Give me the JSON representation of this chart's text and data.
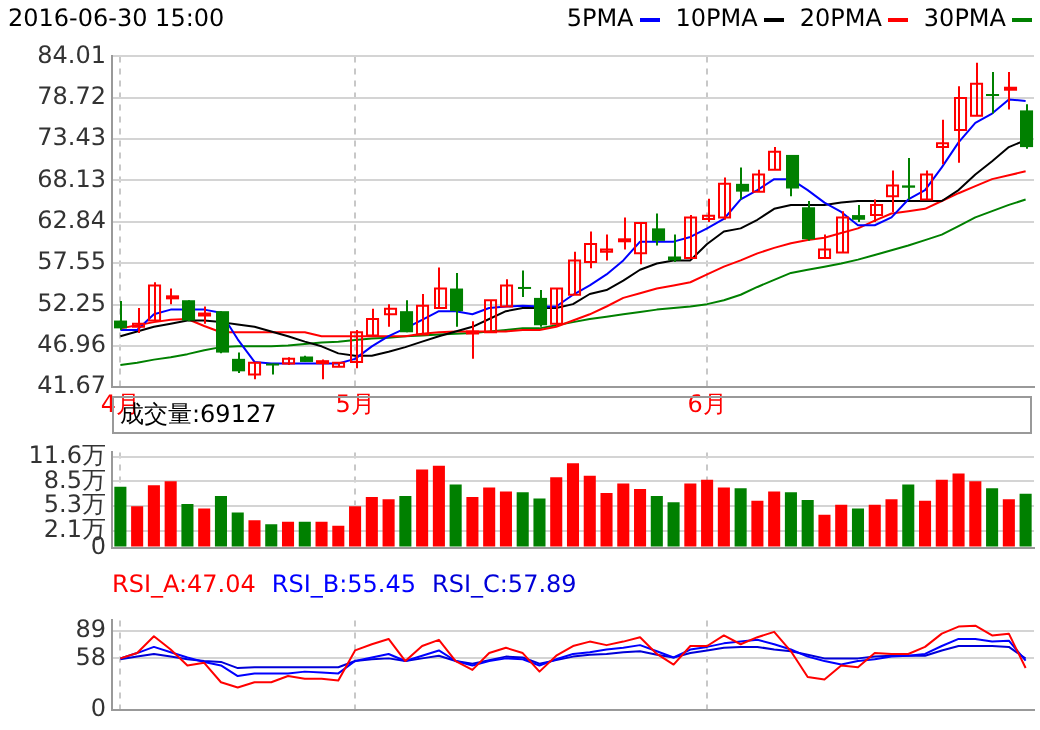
{
  "chart_data": [
    {
      "type": "candlestick",
      "title": "2016-06-30 15:00",
      "categories": [
        "4月",
        null,
        null,
        null,
        null,
        null,
        null,
        null,
        null,
        null,
        null,
        null,
        null,
        null,
        "5月",
        null,
        null,
        null,
        null,
        null,
        null,
        null,
        null,
        null,
        null,
        null,
        null,
        null,
        null,
        null,
        null,
        null,
        null,
        null,
        null,
        "6月",
        null,
        null,
        null,
        null,
        null,
        null,
        null,
        null,
        null,
        null,
        null,
        null,
        null,
        null,
        null,
        null,
        null,
        null,
        null
      ],
      "ohlc": [
        [
          50.2,
          52.7,
          49.0,
          49.2
        ],
        [
          49.4,
          51.8,
          48.6,
          49.8
        ],
        [
          50.2,
          55.1,
          50.2,
          54.7
        ],
        [
          53.1,
          54.3,
          52.3,
          53.3
        ],
        [
          52.8,
          52.8,
          50.1,
          50.2
        ],
        [
          50.9,
          52.0,
          49.8,
          51.1
        ],
        [
          51.4,
          51.4,
          46.0,
          46.1
        ],
        [
          45.3,
          46.1,
          43.5,
          43.7
        ],
        [
          43.3,
          44.8,
          42.7,
          44.8
        ],
        [
          44.7,
          44.7,
          43.3,
          44.5
        ],
        [
          44.7,
          45.5,
          44.5,
          45.3
        ],
        [
          45.6,
          45.7,
          44.9,
          44.9
        ],
        [
          44.8,
          45.2,
          42.7,
          45.0
        ],
        [
          44.3,
          44.8,
          44.3,
          44.8
        ],
        [
          44.9,
          49.0,
          44.1,
          48.7
        ],
        [
          48.3,
          51.7,
          48.3,
          50.4
        ],
        [
          51.0,
          52.3,
          49.4,
          51.7
        ],
        [
          51.4,
          52.8,
          48.7,
          48.7
        ],
        [
          48.4,
          53.6,
          48.4,
          52.1
        ],
        [
          51.8,
          57.0,
          51.8,
          54.3
        ],
        [
          54.3,
          56.3,
          49.4,
          51.4
        ],
        [
          48.6,
          50.1,
          45.3,
          48.8
        ],
        [
          48.7,
          52.8,
          48.6,
          52.8
        ],
        [
          52.0,
          55.5,
          52.0,
          54.7
        ],
        [
          54.5,
          56.6,
          53.2,
          54.3
        ],
        [
          53.1,
          54.1,
          49.4,
          49.6
        ],
        [
          49.8,
          54.3,
          49.4,
          54.3
        ],
        [
          53.5,
          59.0,
          53.5,
          57.9
        ],
        [
          57.7,
          61.6,
          56.9,
          60.0
        ],
        [
          59.0,
          61.2,
          57.9,
          59.3
        ],
        [
          60.4,
          63.4,
          59.3,
          60.6
        ],
        [
          58.8,
          62.7,
          57.4,
          62.7
        ],
        [
          62.0,
          63.9,
          59.8,
          60.4
        ],
        [
          58.4,
          61.2,
          57.7,
          57.9
        ],
        [
          58.2,
          63.7,
          58.2,
          63.4
        ],
        [
          63.2,
          65.8,
          62.8,
          63.6
        ],
        [
          63.4,
          68.5,
          63.1,
          67.7
        ],
        [
          67.7,
          69.8,
          65.7,
          66.7
        ],
        [
          66.7,
          69.5,
          66.7,
          68.9
        ],
        [
          69.5,
          72.4,
          69.5,
          71.8
        ],
        [
          71.4,
          71.4,
          66.1,
          67.1
        ],
        [
          64.7,
          65.5,
          60.4,
          60.6
        ],
        [
          58.2,
          61.2,
          58.2,
          59.3
        ],
        [
          58.9,
          64.2,
          58.9,
          63.4
        ],
        [
          63.7,
          65.0,
          62.8,
          63.1
        ],
        [
          63.7,
          65.7,
          62.8,
          65.0
        ],
        [
          66.1,
          69.4,
          64.1,
          67.5
        ],
        [
          67.5,
          71.0,
          65.7,
          67.2
        ],
        [
          65.7,
          69.4,
          65.7,
          68.9
        ],
        [
          72.4,
          75.9,
          70.2,
          72.9
        ],
        [
          74.6,
          80.2,
          70.4,
          78.7
        ],
        [
          76.4,
          83.2,
          76.4,
          80.5
        ],
        [
          79.2,
          82.0,
          76.7,
          79.0
        ],
        [
          79.8,
          82.0,
          77.2,
          80.0
        ],
        [
          77.1,
          77.9,
          72.2,
          72.4
        ]
      ],
      "colors": [
        "#008000",
        "#ff0000",
        "#ff0000",
        "#ff0000",
        "#008000",
        "#ff0000",
        "#008000",
        "#008000",
        "#ff0000",
        "#008000",
        "#ff0000",
        "#008000",
        "#ff0000",
        "#ff0000",
        "#ff0000",
        "#ff0000",
        "#ff0000",
        "#008000",
        "#ff0000",
        "#ff0000",
        "#008000",
        "#ff0000",
        "#ff0000",
        "#ff0000",
        "#008000",
        "#008000",
        "#ff0000",
        "#ff0000",
        "#ff0000",
        "#ff0000",
        "#ff0000",
        "#ff0000",
        "#008000",
        "#008000",
        "#ff0000",
        "#ff0000",
        "#ff0000",
        "#008000",
        "#ff0000",
        "#ff0000",
        "#008000",
        "#008000",
        "#ff0000",
        "#ff0000",
        "#008000",
        "#ff0000",
        "#ff0000",
        "#008000",
        "#ff0000",
        "#ff0000",
        "#ff0000",
        "#ff0000",
        "#008000",
        "#ff0000",
        "#008000"
      ],
      "series": [
        {
          "name": "5PMA",
          "type": "line",
          "color": "#0000ff",
          "values": [
            49.0,
            49.0,
            51.0,
            51.6,
            51.6,
            51.6,
            51.2,
            47.8,
            44.9,
            44.7,
            44.7,
            44.7,
            44.7,
            44.7,
            45.3,
            46.9,
            48.2,
            49.2,
            50.3,
            51.4,
            51.4,
            51.0,
            51.8,
            52.0,
            52.1,
            52.0,
            52.0,
            53.5,
            54.7,
            56.1,
            57.9,
            60.3,
            60.3,
            60.3,
            60.9,
            62.0,
            63.2,
            65.7,
            66.9,
            68.3,
            68.3,
            66.9,
            65.3,
            64.1,
            62.4,
            62.4,
            63.4,
            65.7,
            66.9,
            69.8,
            73.0,
            75.5,
            76.7,
            78.5,
            78.3
          ]
        },
        {
          "name": "10PMA",
          "type": "line",
          "color": "#000000",
          "values": [
            48.2,
            48.8,
            49.4,
            49.8,
            50.2,
            50.2,
            50.0,
            49.7,
            49.4,
            48.8,
            48.2,
            47.5,
            46.9,
            46.0,
            45.7,
            45.7,
            46.2,
            46.8,
            47.5,
            48.2,
            48.8,
            49.4,
            50.4,
            51.4,
            51.8,
            51.8,
            51.8,
            52.3,
            53.6,
            54.1,
            55.3,
            56.7,
            57.5,
            57.9,
            57.9,
            60.0,
            61.6,
            62.0,
            63.1,
            64.5,
            65.0,
            65.0,
            65.0,
            65.3,
            65.5,
            65.5,
            65.5,
            65.5,
            65.5,
            65.5,
            66.9,
            68.9,
            70.6,
            72.4,
            73.3
          ]
        },
        {
          "name": "20PMA",
          "type": "line",
          "color": "#ff0000",
          "values": [
            49.2,
            49.6,
            50.0,
            50.3,
            50.4,
            49.5,
            48.7,
            48.7,
            48.7,
            48.7,
            48.7,
            48.7,
            48.2,
            48.2,
            48.2,
            48.2,
            48.2,
            48.2,
            48.5,
            48.7,
            48.8,
            48.8,
            48.8,
            48.8,
            49.0,
            49.0,
            49.4,
            50.2,
            51.0,
            52.0,
            53.1,
            53.7,
            54.3,
            54.7,
            55.1,
            56.1,
            57.1,
            57.9,
            58.8,
            59.5,
            60.1,
            60.5,
            60.8,
            61.4,
            62.0,
            63.0,
            63.9,
            64.2,
            64.5,
            65.5,
            66.5,
            67.4,
            68.3,
            68.8,
            69.3
          ]
        },
        {
          "name": "30PMA",
          "type": "line",
          "color": "#008000",
          "values": [
            44.5,
            44.8,
            45.2,
            45.5,
            45.9,
            46.4,
            46.8,
            46.9,
            46.9,
            46.9,
            47.0,
            47.2,
            47.4,
            47.5,
            47.7,
            47.9,
            48.0,
            48.2,
            48.3,
            48.4,
            48.5,
            48.6,
            null,
            49.0,
            49.2,
            49.2,
            49.6,
            50.0,
            50.4,
            50.7,
            51.0,
            51.3,
            51.6,
            51.8,
            52.0,
            52.3,
            52.8,
            53.5,
            54.5,
            55.4,
            56.3,
            56.7,
            57.1,
            57.5,
            58.0,
            58.6,
            59.2,
            59.8,
            60.5,
            61.2,
            62.3,
            63.4,
            64.2,
            65.0,
            65.7
          ]
        }
      ],
      "ylim": [
        41.67,
        84.01
      ],
      "yticks": [
        41.67,
        46.96,
        52.25,
        57.55,
        62.84,
        68.13,
        73.43,
        78.72,
        84.01
      ],
      "grid": true,
      "legend": "top right"
    },
    {
      "type": "bar",
      "annotations": [
        "成交量:69127"
      ],
      "categories": [
        null,
        null,
        null,
        null,
        null,
        null,
        null,
        null,
        null,
        null,
        null,
        null,
        null,
        null,
        null,
        null,
        null,
        null,
        null,
        null,
        null,
        null,
        null,
        null,
        null,
        null,
        null,
        null,
        null,
        null,
        null,
        null,
        null,
        null,
        null,
        null,
        null,
        null,
        null,
        null,
        null,
        null,
        null,
        null,
        null,
        null,
        null,
        null,
        null,
        null,
        null,
        null,
        null,
        null,
        null
      ],
      "values": [
        7.8,
        5.3,
        8.0,
        8.5,
        5.6,
        5.0,
        6.6,
        4.5,
        3.5,
        3.0,
        3.3,
        3.3,
        3.3,
        2.8,
        5.3,
        6.5,
        6.2,
        6.6,
        10.0,
        10.5,
        8.1,
        6.5,
        7.7,
        7.2,
        7.1,
        6.3,
        9.0,
        10.8,
        9.2,
        7.0,
        8.2,
        7.5,
        6.6,
        5.8,
        8.2,
        8.7,
        7.7,
        7.6,
        6.0,
        7.2,
        7.1,
        6.1,
        4.2,
        5.5,
        5.0,
        5.5,
        6.2,
        8.1,
        6.0,
        8.7,
        9.5,
        8.5,
        7.6,
        6.2,
        6.9
      ],
      "colors": [
        "#008000",
        "#ff0000",
        "#ff0000",
        "#ff0000",
        "#008000",
        "#ff0000",
        "#008000",
        "#008000",
        "#ff0000",
        "#008000",
        "#ff0000",
        "#008000",
        "#ff0000",
        "#ff0000",
        "#ff0000",
        "#ff0000",
        "#ff0000",
        "#008000",
        "#ff0000",
        "#ff0000",
        "#008000",
        "#ff0000",
        "#ff0000",
        "#ff0000",
        "#008000",
        "#008000",
        "#ff0000",
        "#ff0000",
        "#ff0000",
        "#ff0000",
        "#ff0000",
        "#ff0000",
        "#008000",
        "#008000",
        "#ff0000",
        "#ff0000",
        "#ff0000",
        "#008000",
        "#ff0000",
        "#ff0000",
        "#008000",
        "#008000",
        "#ff0000",
        "#ff0000",
        "#008000",
        "#ff0000",
        "#ff0000",
        "#008000",
        "#ff0000",
        "#ff0000",
        "#ff0000",
        "#ff0000",
        "#008000",
        "#ff0000",
        "#008000"
      ],
      "ylim": [
        0,
        12.2
      ],
      "yticks": [
        0,
        {
          "value": 2.1,
          "label": "2.1万"
        },
        {
          "value": 5.3,
          "label": "5.3万"
        },
        {
          "value": 8.5,
          "label": "8.5万"
        },
        {
          "value": 11.6,
          "label": "11.6万"
        }
      ],
      "grid": true,
      "tick_labels": "y"
    },
    {
      "type": "line",
      "categories": [
        null,
        null,
        null,
        null,
        null,
        null,
        null,
        null,
        null,
        null,
        null,
        null,
        null,
        null,
        null,
        null,
        null,
        null,
        null,
        null,
        null,
        null,
        null,
        null,
        null,
        null,
        null,
        null,
        null,
        null,
        null,
        null,
        null,
        null,
        null,
        null,
        null,
        null,
        null,
        null,
        null,
        null,
        null,
        null,
        null,
        null,
        null,
        null,
        null,
        null,
        null,
        null,
        null,
        null,
        null
      ],
      "series": [
        {
          "name": "RSI_A:47.04",
          "color": "#ff0000",
          "values": [
            58,
            64,
            83,
            68,
            50,
            53,
            31,
            25,
            31,
            31,
            38,
            35,
            35,
            33,
            67,
            74,
            80,
            55,
            72,
            79,
            55,
            45,
            64,
            70,
            64,
            43,
            61,
            72,
            77,
            73,
            77,
            82,
            63,
            51,
            72,
            72,
            84,
            74,
            82,
            88,
            66,
            37,
            34,
            50,
            48,
            64,
            63,
            63,
            71,
            86,
            94,
            95,
            84,
            86,
            47.04
          ]
        },
        {
          "name": "RSI_B:55.45",
          "color": "#0000ff",
          "values": [
            58,
            64,
            71,
            65,
            59,
            54,
            50,
            38,
            41,
            41,
            41,
            43,
            42,
            41,
            55,
            59,
            63,
            55,
            61,
            67,
            55,
            50,
            55,
            58,
            57,
            50,
            57,
            63,
            65,
            68,
            70,
            73,
            66,
            59,
            68,
            71,
            75,
            77,
            79,
            74,
            68,
            60,
            55,
            51,
            55,
            57,
            60,
            61,
            63,
            72,
            80,
            80,
            77,
            78,
            55.45
          ]
        },
        {
          "name": "RSI_C:57.89",
          "color": "#0000d8",
          "values": [
            57,
            60,
            63,
            60,
            57,
            55,
            54,
            47,
            48,
            48,
            48,
            48,
            48,
            48,
            55,
            57,
            58,
            55,
            58,
            61,
            55,
            52,
            56,
            60,
            59,
            52,
            56,
            60,
            62,
            63,
            65,
            66,
            62,
            59,
            64,
            67,
            70,
            71,
            71,
            68,
            66,
            62,
            58,
            58,
            58,
            60,
            61,
            61,
            61,
            67,
            72,
            72,
            72,
            71,
            57.89
          ]
        }
      ],
      "ylim": [
        0,
        101
      ],
      "yticks": [
        0,
        58,
        89
      ],
      "grid": true,
      "legend": "top left",
      "tick_labels": "y"
    }
  ]
}
